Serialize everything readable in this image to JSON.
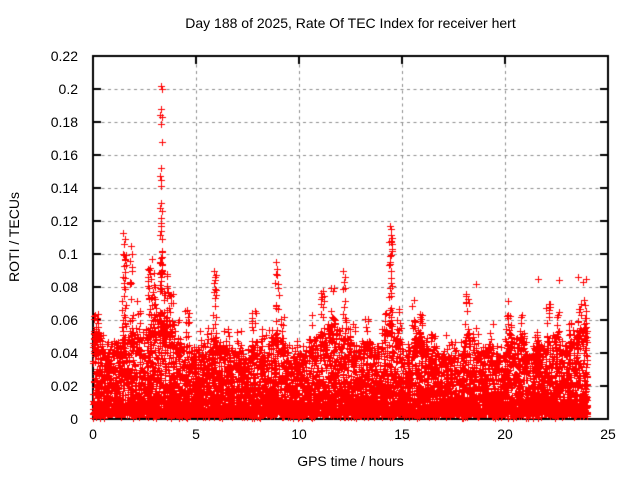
{
  "chart_data": {
    "type": "scatter",
    "title": "Day 188 of 2025, Rate Of TEC Index for receiver hert",
    "xlabel": "GPS time / hours",
    "ylabel": "ROTI / TECUs",
    "xlim": [
      0,
      25
    ],
    "ylim": [
      0,
      0.22
    ],
    "x_ticks": {
      "values": [
        0,
        5,
        10,
        15,
        20,
        25
      ],
      "labels": [
        "0",
        "5",
        "10",
        "15",
        "20",
        "25"
      ]
    },
    "y_ticks": {
      "values": [
        0,
        0.02,
        0.04,
        0.06,
        0.08,
        0.1,
        0.12,
        0.14,
        0.16,
        0.18,
        0.2,
        0.22
      ],
      "labels": [
        "0",
        "0.02",
        "0.04",
        "0.06",
        "0.08",
        "0.1",
        "0.12",
        "0.14",
        "0.16",
        "0.18",
        "0.2",
        "0.22"
      ]
    },
    "grid": {
      "shown": true,
      "color": "#8c8c8c",
      "style": "dashed"
    },
    "axis_color": "#000000",
    "background": "#ffffff",
    "legend": "none",
    "series": [
      {
        "name": "ROTI",
        "marker": "plus",
        "color": "#ff0000"
      }
    ],
    "data_model": {
      "x_start": 0,
      "x_end": 24.02,
      "bin_width": 0.5,
      "y_floor": 0.003,
      "points_per_bin": 170,
      "shape_exp": 2.1,
      "base_envelope": [
        0.052,
        0.042,
        0.048,
        0.052,
        0.05,
        0.055,
        0.06,
        0.058,
        0.045,
        0.042,
        0.04,
        0.05,
        0.045,
        0.042,
        0.038,
        0.045,
        0.04,
        0.05,
        0.045,
        0.038,
        0.04,
        0.045,
        0.055,
        0.055,
        0.05,
        0.042,
        0.048,
        0.045,
        0.058,
        0.05,
        0.042,
        0.055,
        0.045,
        0.04,
        0.038,
        0.042,
        0.05,
        0.04,
        0.042,
        0.04,
        0.052,
        0.048,
        0.04,
        0.045,
        0.05,
        0.045,
        0.05,
        0.055
      ],
      "clusters": [
        [
          0.15,
          0.12,
          0.035,
          0.066,
          28
        ],
        [
          0.7,
          0.2,
          0.03,
          0.048,
          12
        ],
        [
          1.5,
          0.1,
          0.045,
          0.101,
          26
        ],
        [
          1.85,
          0.08,
          0.045,
          0.09,
          18
        ],
        [
          2.2,
          0.1,
          0.04,
          0.072,
          14
        ],
        [
          2.85,
          0.2,
          0.05,
          0.097,
          40
        ],
        [
          3.3,
          0.07,
          0.05,
          0.115,
          45
        ],
        [
          3.55,
          0.1,
          0.045,
          0.09,
          26
        ],
        [
          3.8,
          0.1,
          0.04,
          0.078,
          18
        ],
        [
          4.2,
          0.12,
          0.035,
          0.06,
          10
        ],
        [
          4.55,
          0.12,
          0.035,
          0.068,
          12
        ],
        [
          5.3,
          0.15,
          0.03,
          0.055,
          10
        ],
        [
          5.9,
          0.07,
          0.045,
          0.088,
          16
        ],
        [
          6.5,
          0.15,
          0.035,
          0.062,
          12
        ],
        [
          7.1,
          0.15,
          0.03,
          0.055,
          10
        ],
        [
          7.8,
          0.1,
          0.035,
          0.07,
          12
        ],
        [
          8.3,
          0.15,
          0.03,
          0.055,
          10
        ],
        [
          8.9,
          0.07,
          0.045,
          0.09,
          16
        ],
        [
          9.15,
          0.12,
          0.035,
          0.068,
          12
        ],
        [
          9.8,
          0.15,
          0.03,
          0.05,
          8
        ],
        [
          10.6,
          0.12,
          0.035,
          0.063,
          10
        ],
        [
          11.15,
          0.1,
          0.04,
          0.078,
          16
        ],
        [
          11.65,
          0.1,
          0.04,
          0.08,
          16
        ],
        [
          12.2,
          0.08,
          0.045,
          0.085,
          14
        ],
        [
          12.7,
          0.12,
          0.035,
          0.06,
          10
        ],
        [
          13.3,
          0.1,
          0.035,
          0.062,
          10
        ],
        [
          14.45,
          0.09,
          0.05,
          0.112,
          30
        ],
        [
          14.8,
          0.1,
          0.04,
          0.07,
          12
        ],
        [
          15.55,
          0.08,
          0.04,
          0.073,
          14
        ],
        [
          15.95,
          0.1,
          0.04,
          0.068,
          14
        ],
        [
          16.5,
          0.12,
          0.035,
          0.058,
          10
        ],
        [
          17.3,
          0.15,
          0.03,
          0.052,
          8
        ],
        [
          18.15,
          0.09,
          0.04,
          0.077,
          14
        ],
        [
          18.7,
          0.12,
          0.035,
          0.058,
          10
        ],
        [
          19.3,
          0.12,
          0.035,
          0.06,
          10
        ],
        [
          20.2,
          0.1,
          0.04,
          0.073,
          16
        ],
        [
          20.9,
          0.12,
          0.04,
          0.065,
          12
        ],
        [
          21.5,
          0.15,
          0.035,
          0.055,
          10
        ],
        [
          22.1,
          0.1,
          0.04,
          0.07,
          14
        ],
        [
          22.6,
          0.1,
          0.04,
          0.065,
          10
        ],
        [
          23.2,
          0.12,
          0.04,
          0.06,
          10
        ],
        [
          23.6,
          0.12,
          0.045,
          0.073,
          18
        ],
        [
          23.9,
          0.08,
          0.04,
          0.072,
          14
        ]
      ],
      "outliers": [
        [
          3.28,
          0.202
        ],
        [
          3.33,
          0.2
        ],
        [
          3.3,
          0.188
        ],
        [
          3.27,
          0.184
        ],
        [
          3.33,
          0.183
        ],
        [
          3.3,
          0.179
        ],
        [
          3.33,
          0.168
        ],
        [
          3.3,
          0.152
        ],
        [
          3.27,
          0.147
        ],
        [
          3.32,
          0.145
        ],
        [
          3.3,
          0.141
        ],
        [
          3.3,
          0.131
        ],
        [
          3.26,
          0.128
        ],
        [
          3.34,
          0.126
        ],
        [
          3.3,
          0.122
        ],
        [
          3.28,
          0.119
        ],
        [
          3.32,
          0.117
        ],
        [
          3.3,
          0.114
        ],
        [
          1.48,
          0.113
        ],
        [
          1.53,
          0.109
        ],
        [
          1.5,
          0.106
        ],
        [
          1.44,
          0.1
        ],
        [
          1.55,
          0.097
        ],
        [
          1.5,
          0.093
        ],
        [
          1.84,
          0.105
        ],
        [
          1.9,
          0.1
        ],
        [
          1.82,
          0.096
        ],
        [
          1.87,
          0.092
        ],
        [
          14.42,
          0.117
        ],
        [
          14.47,
          0.115
        ],
        [
          14.45,
          0.107
        ],
        [
          14.5,
          0.102
        ],
        [
          14.4,
          0.099
        ],
        [
          14.44,
          0.095
        ],
        [
          14.46,
          0.09
        ],
        [
          8.87,
          0.095
        ],
        [
          8.92,
          0.091
        ],
        [
          8.9,
          0.088
        ],
        [
          12.15,
          0.09
        ],
        [
          12.25,
          0.086
        ],
        [
          12.2,
          0.083
        ],
        [
          5.88,
          0.09
        ],
        [
          5.93,
          0.086
        ],
        [
          9.02,
          0.075
        ],
        [
          18.6,
          0.082
        ],
        [
          21.6,
          0.085
        ],
        [
          22.6,
          0.084
        ],
        [
          23.55,
          0.086
        ],
        [
          23.8,
          0.083
        ],
        [
          23.95,
          0.085
        ]
      ]
    }
  }
}
